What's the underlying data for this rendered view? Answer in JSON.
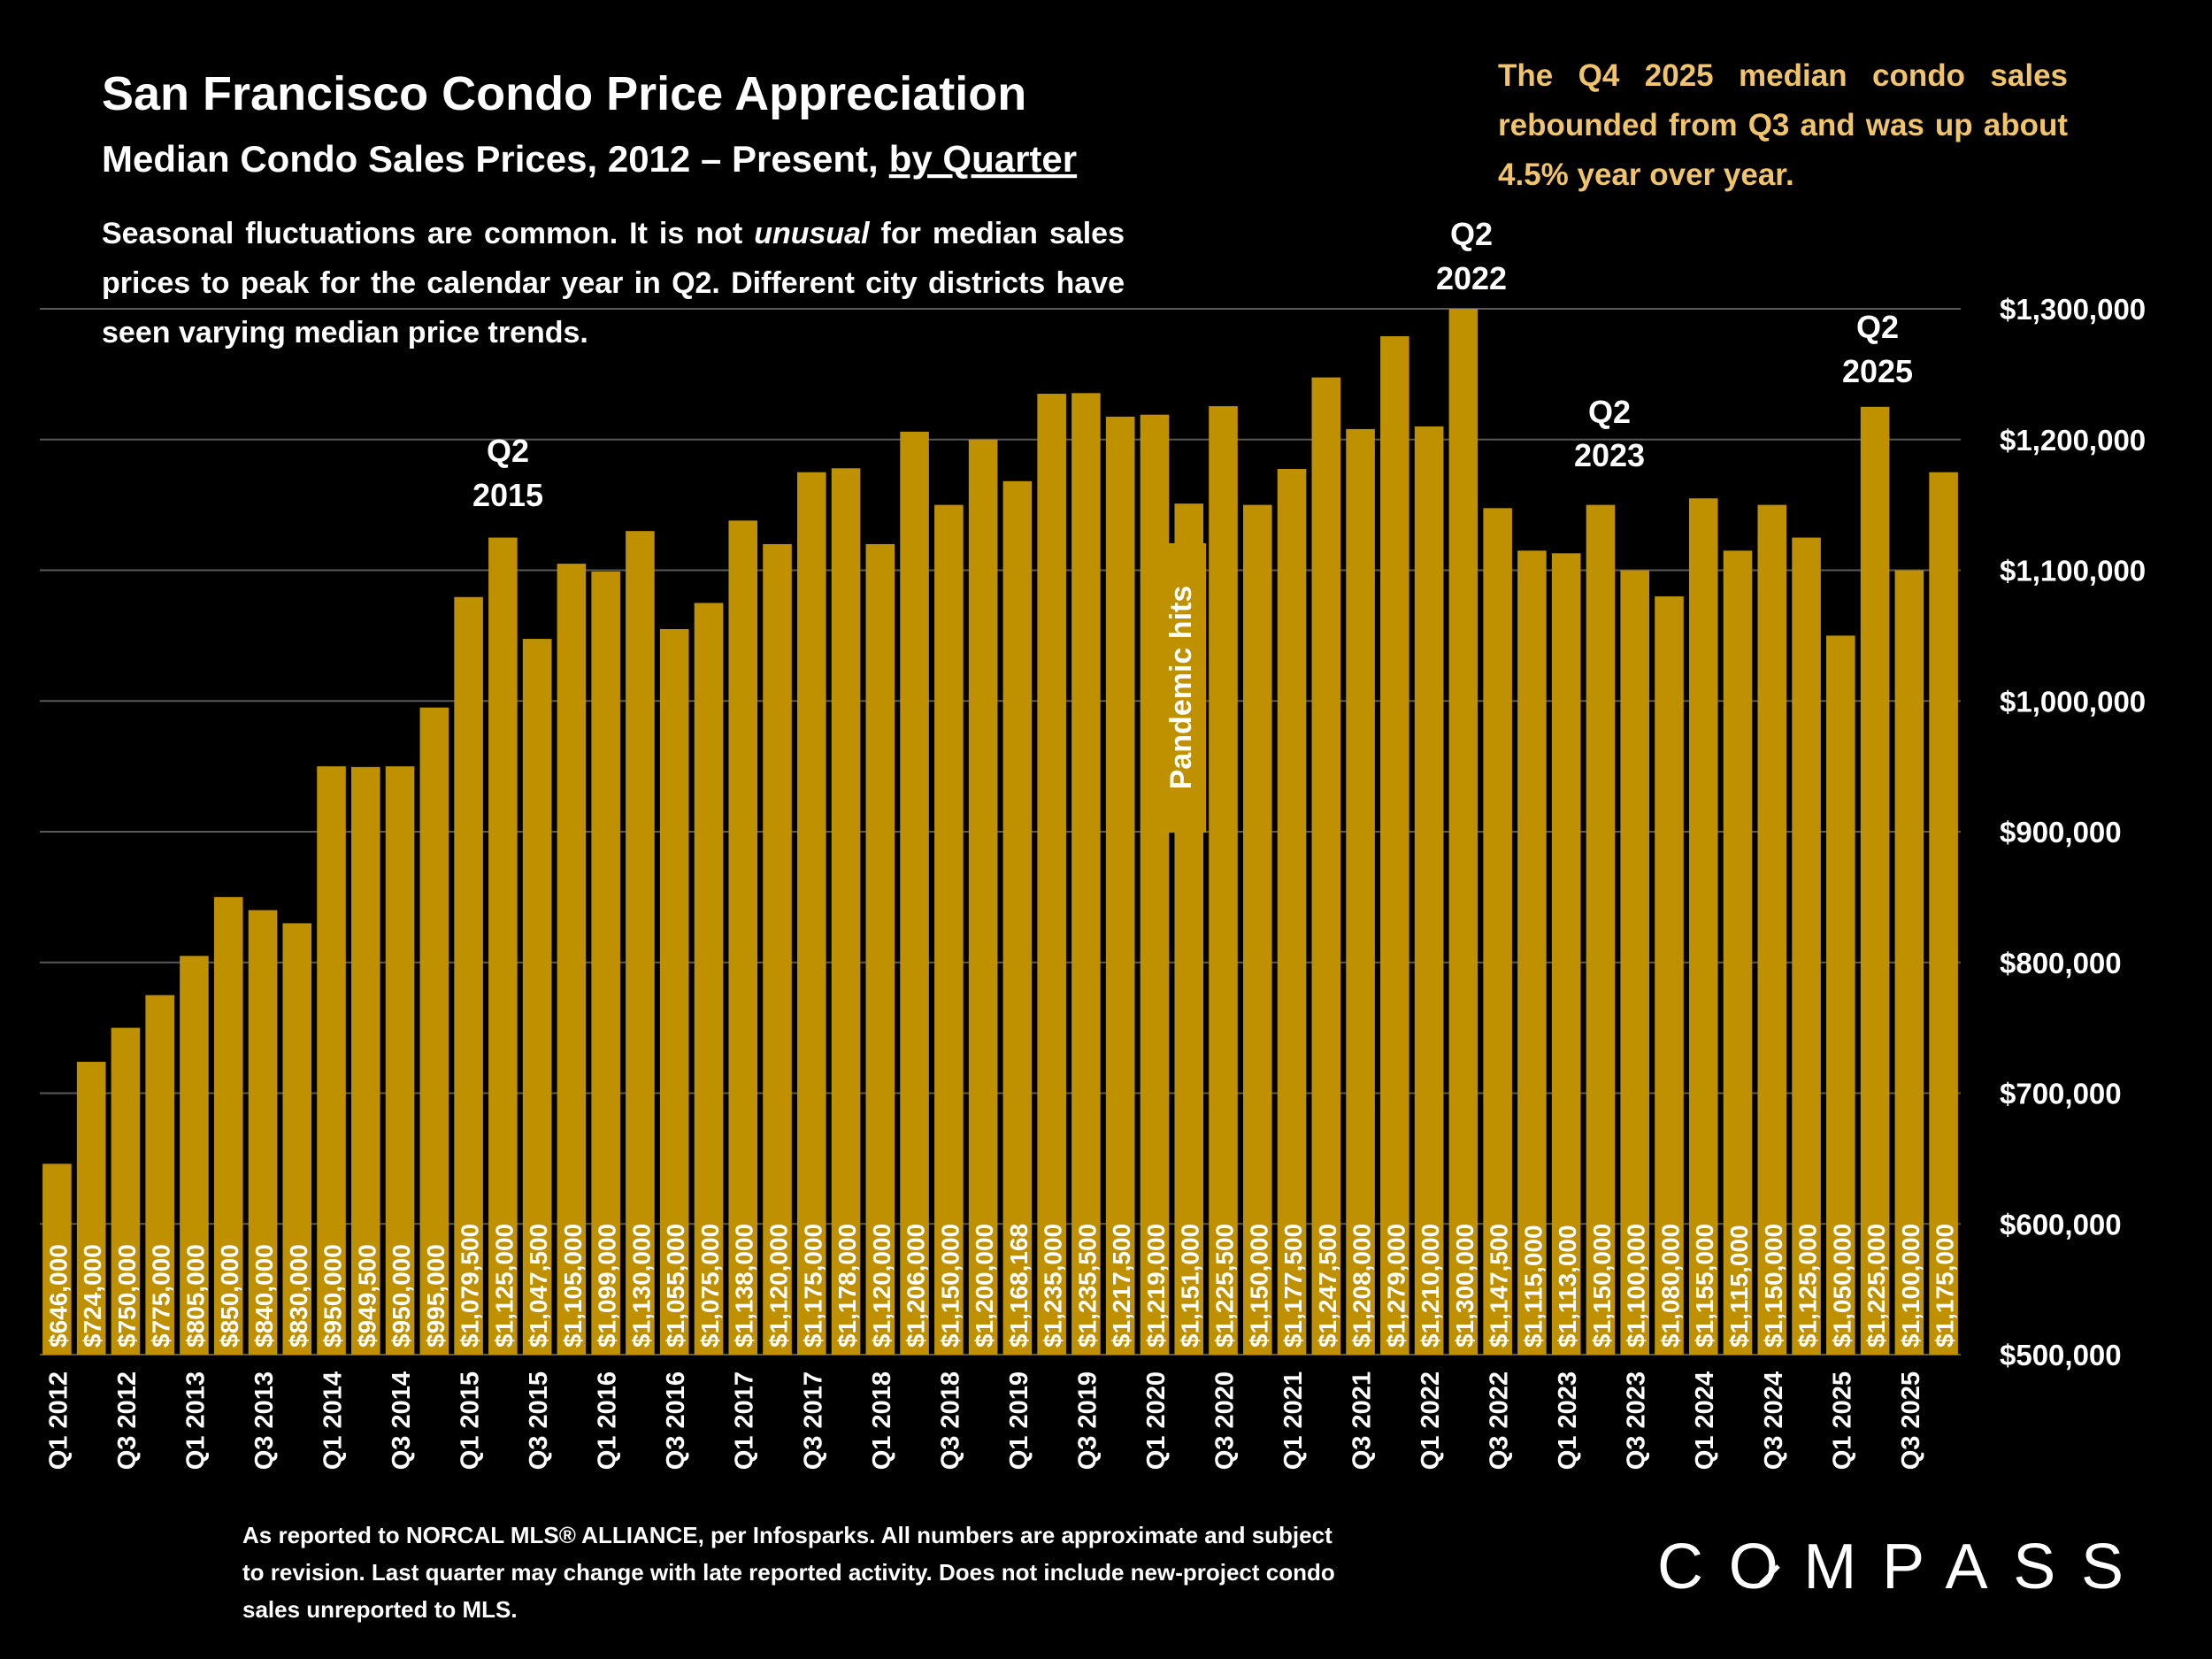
{
  "chart_data": {
    "type": "bar",
    "title": "San Francisco Condo Price Appreciation",
    "subtitle": [
      "Median Condo Sales Prices, 2012 – Present,",
      "by Quarter"
    ],
    "note": [
      "Seasonal fluctuations are common. It is not",
      "unusual",
      "for median sales prices to peak for the calendar year in Q2. Different city districts have seen varying median price trends."
    ],
    "callout": "The Q4 2025 median condo sales rebounded from Q3 and was up about 4.5% year over year.",
    "annotations": [
      {
        "lines": [
          "Q2",
          "2015"
        ]
      },
      {
        "lines": [
          "Q2",
          "2022"
        ]
      },
      {
        "lines": [
          "Q2",
          "2023"
        ]
      },
      {
        "lines": [
          "Q2",
          "2025"
        ]
      },
      {
        "lines": [
          "Pandemic hits"
        ]
      }
    ],
    "footnote": "As reported to NORCAL MLS® ALLIANCE, per Infosparks. All numbers are approximate and subject to revision. Last quarter may change with late reported activity. Does not include new-project condo sales unreported to MLS.",
    "logo": "COMPASS",
    "color": "#bf9000",
    "categories": [
      "Q1 2012",
      null,
      "Q3 2012",
      null,
      "Q1 2013",
      null,
      "Q3 2013",
      null,
      "Q1 2014",
      null,
      "Q3 2014",
      null,
      "Q1 2015",
      null,
      "Q3 2015",
      null,
      "Q1 2016",
      null,
      "Q3 2016",
      null,
      "Q1 2017",
      null,
      "Q3 2017",
      null,
      "Q1 2018",
      null,
      "Q3 2018",
      null,
      "Q1 2019",
      null,
      "Q3 2019",
      null,
      "Q1 2020",
      null,
      "Q3 2020",
      null,
      "Q1 2021",
      null,
      "Q3 2021",
      null,
      "Q1 2022",
      null,
      "Q3 2022",
      null,
      "Q1 2023",
      null,
      "Q3 2023",
      null,
      "Q1 2024",
      null,
      "Q3 2024",
      null,
      "Q1 2025",
      null,
      "Q3 2025",
      null
    ],
    "values": [
      646000,
      724000,
      750000,
      775000,
      805000,
      850000,
      840000,
      830000,
      950000,
      949500,
      950000,
      995000,
      1079500,
      1125000,
      1047500,
      1105000,
      1099000,
      1130000,
      1055000,
      1075000,
      1138000,
      1120000,
      1175000,
      1178000,
      1120000,
      1206000,
      1150000,
      1200000,
      1168168,
      1235000,
      1235500,
      1217500,
      1219000,
      1151000,
      1225500,
      1150000,
      1177500,
      1247500,
      1208000,
      1279000,
      1210000,
      1300000,
      1147500,
      1115000,
      1113000,
      1150000,
      1100000,
      1080000,
      1155000,
      1115000,
      1150000,
      1125000,
      1050000,
      1225000,
      1100000,
      1175000
    ],
    "value_labels": [
      "$646,000",
      "$724,000",
      "$750,000",
      "$775,000",
      "$805,000",
      "$850,000",
      "$840,000",
      "$830,000",
      "$950,000",
      "$949,500",
      "$950,000",
      "$995,000",
      "$1,079,500",
      "$1,125,000",
      "$1,047,500",
      "$1,105,000",
      "$1,099,000",
      "$1,130,000",
      "$1,055,000",
      "$1,075,000",
      "$1,138,000",
      "$1,120,000",
      "$1,175,000",
      "$1,178,000",
      "$1,120,000",
      "$1,206,000",
      "$1,150,000",
      "$1,200,000",
      "$1,168,168",
      "$1,235,000",
      "$1,235,500",
      "$1,217,500",
      "$1,219,000",
      "$1,151,000",
      "$1,225,500",
      "$1,150,000",
      "$1,177,500",
      "$1,247,500",
      "$1,208,000",
      "$1,279,000",
      "$1,210,000",
      "$1,300,000",
      "$1,147,500",
      "$1,115,000",
      "$1,113,000",
      "$1,150,000",
      "$1,100,000",
      "$1,080,000",
      "$1,155,000",
      "$1,115,000",
      "$1,150,000",
      "$1,125,000",
      "$1,050,000",
      "$1,225,000",
      "$1,100,000",
      "$1,175,000"
    ],
    "ylim": [
      500000,
      1300000
    ],
    "yticks": [
      {
        "value": 500000,
        "label": "$500,000"
      },
      {
        "value": 600000,
        "label": "$600,000"
      },
      {
        "value": 700000,
        "label": "$700,000"
      },
      {
        "value": 800000,
        "label": "$800,000"
      },
      {
        "value": 900000,
        "label": "$900,000"
      },
      {
        "value": 1000000,
        "label": "$1,000,000"
      },
      {
        "value": 1100000,
        "label": "$1,100,000"
      },
      {
        "value": 1200000,
        "label": "$1,200,000"
      },
      {
        "value": 1300000,
        "label": "$1,300,000"
      }
    ],
    "grid": true
  }
}
